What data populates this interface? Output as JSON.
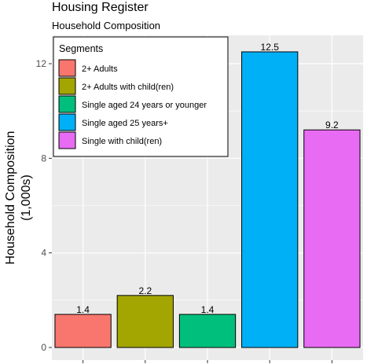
{
  "chart_data": {
    "type": "bar",
    "title": "Housing Register",
    "subtitle": "Household Composition",
    "xlabel": "",
    "ylabel": [
      "Household Composition",
      "(1,000s)"
    ],
    "ylim": [
      0,
      13.1
    ],
    "yticks": [
      0,
      4,
      8,
      12
    ],
    "grid": true,
    "legend": {
      "title": "Segments",
      "position": "top-left"
    },
    "categories": [
      "2+ Adults",
      "2+ Adults with child(ren)",
      "Single aged 24 years or younger",
      "Single aged 25 years+",
      "Single with child(ren)"
    ],
    "values": [
      1.4,
      2.2,
      1.4,
      12.5,
      9.2
    ],
    "data_labels": [
      "1.4",
      "2.2",
      "1.4",
      "12.5",
      "9.2"
    ],
    "colors": [
      "#F8766D",
      "#A3A500",
      "#00BF7D",
      "#00B0F6",
      "#E76BF3"
    ]
  }
}
